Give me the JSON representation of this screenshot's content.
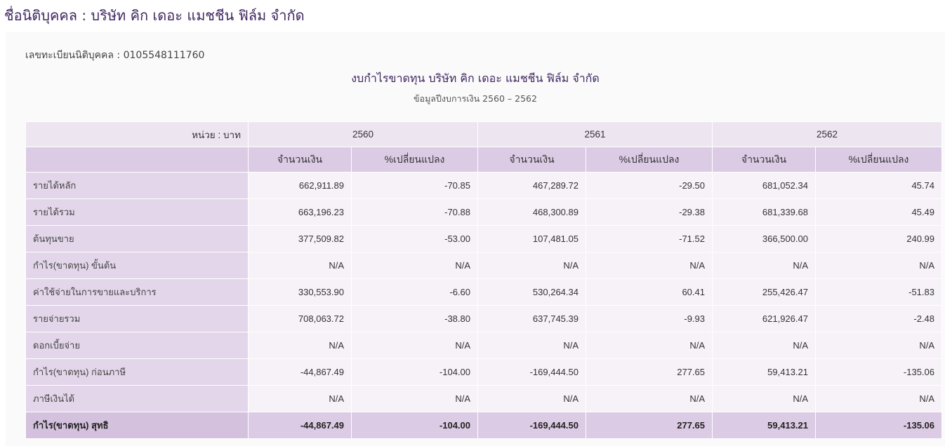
{
  "page_title": "ชื่อนิติบุคคล : บริษัท คิก เดอะ แมชชีน ฟิล์ม จำกัด",
  "registration": "เลขทะเบียนนิติบุคคล : 0105548111760",
  "report_title": "งบกำไรขาดทุน บริษัท คิก เดอะ แมชชีน ฟิล์ม จำกัด",
  "report_subtitle": "ข้อมูลปีงบการเงิน 2560 – 2562",
  "table": {
    "unit": "หน่วย : บาท",
    "years": [
      "2560",
      "2561",
      "2562"
    ],
    "subheaders": [
      "จำนวนเงิน",
      "%เปลี่ยนแปลง"
    ],
    "rows": [
      {
        "label": "รายได้หลัก",
        "values": [
          "662,911.89",
          "-70.85",
          "467,289.72",
          "-29.50",
          "681,052.34",
          "45.74"
        ]
      },
      {
        "label": "รายได้รวม",
        "values": [
          "663,196.23",
          "-70.88",
          "468,300.89",
          "-29.38",
          "681,339.68",
          "45.49"
        ]
      },
      {
        "label": "ต้นทุนขาย",
        "values": [
          "377,509.82",
          "-53.00",
          "107,481.05",
          "-71.52",
          "366,500.00",
          "240.99"
        ]
      },
      {
        "label": "กำไร(ขาดทุน) ขั้นต้น",
        "values": [
          "N/A",
          "N/A",
          "N/A",
          "N/A",
          "N/A",
          "N/A"
        ]
      },
      {
        "label": "ค่าใช้จ่ายในการขายและบริการ",
        "values": [
          "330,553.90",
          "-6.60",
          "530,264.34",
          "60.41",
          "255,426.47",
          "-51.83"
        ]
      },
      {
        "label": "รายจ่ายรวม",
        "values": [
          "708,063.72",
          "-38.80",
          "637,745.39",
          "-9.93",
          "621,926.47",
          "-2.48"
        ]
      },
      {
        "label": "ดอกเบี้ยจ่าย",
        "values": [
          "N/A",
          "N/A",
          "N/A",
          "N/A",
          "N/A",
          "N/A"
        ]
      },
      {
        "label": "กำไร(ขาดทุน) ก่อนภาษี",
        "values": [
          "-44,867.49",
          "-104.00",
          "-169,444.50",
          "277.65",
          "59,413.21",
          "-135.06"
        ]
      },
      {
        "label": "ภาษีเงินได้",
        "values": [
          "N/A",
          "N/A",
          "N/A",
          "N/A",
          "N/A",
          "N/A"
        ]
      }
    ],
    "total": {
      "label": "กำไร(ขาดทุน) สุทธิ",
      "values": [
        "-44,867.49",
        "-104.00",
        "-169,444.50",
        "277.65",
        "59,413.21",
        "-135.06"
      ]
    }
  }
}
